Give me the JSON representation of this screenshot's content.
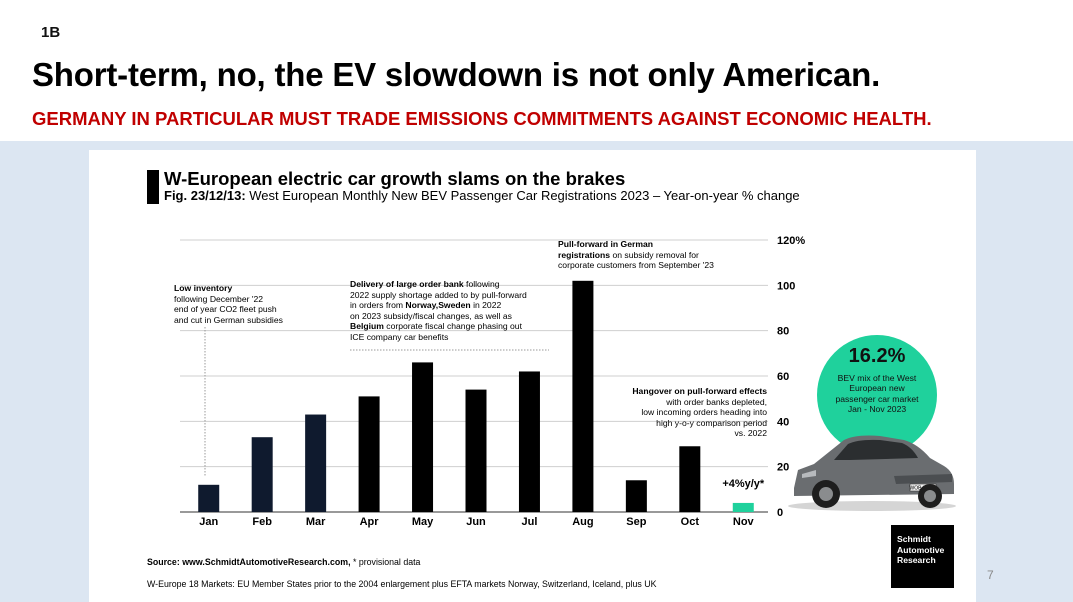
{
  "slide": {
    "tag": "1B",
    "title": "Short-term, no, the EV slowdown is not only American.",
    "subtitle": "GERMANY IN PARTICULAR MUST TRADE EMISSIONS COMMITMENTS AGAINST ECONOMIC HEALTH.",
    "page_number": "7"
  },
  "colors": {
    "title": "#000000",
    "subtitle": "#c00000",
    "band": "#dce6f2",
    "bar": "#000000",
    "highlight_bar": "#1fd19c",
    "badge": "#1fd19c"
  },
  "chart_data": {
    "type": "bar",
    "title": "W-European electric car growth slams on the brakes",
    "subtitle_prefix": "Fig. 23/12/13:",
    "subtitle_text": " West European Monthly New BEV Passenger Car Registrations 2023 – Year-on-year % change",
    "categories": [
      "Jan",
      "Feb",
      "Mar",
      "Apr",
      "May",
      "Jun",
      "Jul",
      "Aug",
      "Sep",
      "Oct",
      "Nov"
    ],
    "values": [
      12,
      33,
      43,
      51,
      66,
      54,
      62,
      102,
      14,
      29,
      4
    ],
    "highlight": [
      false,
      false,
      false,
      false,
      false,
      false,
      false,
      false,
      false,
      false,
      true
    ],
    "ylim": [
      0,
      120
    ],
    "yticks": [
      "0",
      "20",
      "40",
      "60",
      "80",
      "100",
      "120%"
    ],
    "ytick_values": [
      0,
      20,
      40,
      60,
      80,
      100,
      120
    ],
    "grid": true,
    "y_axis_side": "right",
    "nov_label": "+4%y/y*"
  },
  "annotations": {
    "low_inventory": {
      "bold": "Low inventory",
      "lines": [
        "following December '22",
        "end of year CO2 fleet push",
        "and cut in German subsidies"
      ]
    },
    "delivery": {
      "bold1": "Delivery of large order bank",
      "text1": " following",
      "line2": "2022 supply shortage added to by pull-forward",
      "line3a": "in orders from ",
      "bold2": "Norway,Sweden",
      "line3b": " in 2022",
      "line4": "on 2023 subsidy/fiscal changes, as well as",
      "bold3": "Belgium",
      "line5b": " corporate fiscal change phasing out",
      "line6": "ICE company car benefits"
    },
    "pull_forward": {
      "bold1": "Pull-forward in German",
      "bold2": "registrations",
      "text2": " on subsidy removal for",
      "line3": "corporate customers from September '23"
    },
    "hangover": {
      "bold": "Hangover on pull-forward effects",
      "lines": [
        "with order banks depleted,",
        "low incoming orders heading into",
        "high y-o-y comparison period",
        "vs. 2022"
      ]
    }
  },
  "badge": {
    "value": "16.2%",
    "text": "BEV mix of the West European new passenger car market Jan - Nov 2023"
  },
  "car": {
    "plate": "WOB-ID348"
  },
  "logo": {
    "line1": "Schmidt",
    "line2": "Automotive",
    "line3": "Research"
  },
  "source": {
    "label": "Source: www.SchmidtAutomotiveResearch.com,",
    "text": " * provisional data",
    "footnote": "W-Europe 18 Markets: EU Member States prior to the 2004 enlargement plus EFTA markets Norway, Switzerland, Iceland, plus UK"
  }
}
